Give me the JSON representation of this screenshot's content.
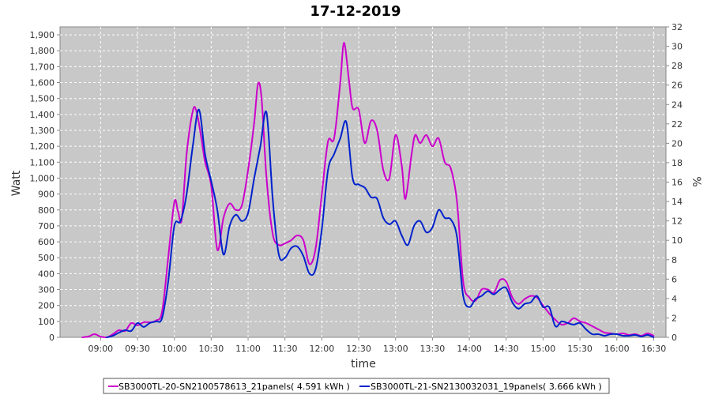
{
  "chart_data": {
    "type": "line",
    "title": "17-12-2019",
    "xlabel": "time",
    "ylabel": "Watt",
    "y2label": "%",
    "ylim": [
      0,
      1950
    ],
    "y2lim": [
      0,
      32
    ],
    "x_ticks": [
      "09:00",
      "09:30",
      "10:00",
      "10:30",
      "11:00",
      "11:30",
      "12:00",
      "12:30",
      "13:00",
      "13:30",
      "14:00",
      "14:30",
      "15:00",
      "15:30",
      "16:00",
      "16:30"
    ],
    "y_ticks": [
      "0",
      "100",
      "200",
      "300",
      "400",
      "500",
      "600",
      "700",
      "800",
      "900",
      "1,000",
      "1,100",
      "1,200",
      "1,300",
      "1,400",
      "1,500",
      "1,600",
      "1,700",
      "1,800",
      "1,900"
    ],
    "y2_ticks": [
      "0",
      "2",
      "4",
      "6",
      "8",
      "10",
      "12",
      "14",
      "16",
      "18",
      "20",
      "22",
      "24",
      "26",
      "28",
      "30",
      "32"
    ],
    "grid": true,
    "legend_position": "bottom",
    "series": [
      {
        "name": "SB3000TL-20-SN2100578613_21panels( 4.591 kWh )",
        "color": "#cc00cc",
        "points": [
          [
            "08:45",
            0
          ],
          [
            "08:50",
            5
          ],
          [
            "08:55",
            20
          ],
          [
            "09:00",
            5
          ],
          [
            "09:05",
            0
          ],
          [
            "09:10",
            20
          ],
          [
            "09:15",
            45
          ],
          [
            "09:20",
            40
          ],
          [
            "09:25",
            90
          ],
          [
            "09:30",
            75
          ],
          [
            "09:35",
            95
          ],
          [
            "09:40",
            95
          ],
          [
            "09:45",
            105
          ],
          [
            "09:50",
            160
          ],
          [
            "09:55",
            500
          ],
          [
            "10:00",
            850
          ],
          [
            "10:03",
            790
          ],
          [
            "10:06",
            740
          ],
          [
            "10:10",
            1150
          ],
          [
            "10:15",
            1420
          ],
          [
            "10:18",
            1420
          ],
          [
            "10:22",
            1250
          ],
          [
            "10:25",
            1100
          ],
          [
            "10:30",
            950
          ],
          [
            "10:35",
            550
          ],
          [
            "10:40",
            750
          ],
          [
            "10:45",
            840
          ],
          [
            "10:50",
            800
          ],
          [
            "10:55",
            830
          ],
          [
            "11:00",
            1050
          ],
          [
            "11:05",
            1350
          ],
          [
            "11:08",
            1590
          ],
          [
            "11:11",
            1500
          ],
          [
            "11:15",
            1000
          ],
          [
            "11:20",
            650
          ],
          [
            "11:25",
            580
          ],
          [
            "11:30",
            590
          ],
          [
            "11:35",
            610
          ],
          [
            "11:40",
            640
          ],
          [
            "11:45",
            610
          ],
          [
            "11:50",
            460
          ],
          [
            "11:55",
            560
          ],
          [
            "12:00",
            900
          ],
          [
            "12:05",
            1230
          ],
          [
            "12:10",
            1250
          ],
          [
            "12:15",
            1600
          ],
          [
            "12:18",
            1850
          ],
          [
            "12:22",
            1620
          ],
          [
            "12:25",
            1440
          ],
          [
            "12:30",
            1430
          ],
          [
            "12:35",
            1220
          ],
          [
            "12:40",
            1360
          ],
          [
            "12:45",
            1300
          ],
          [
            "12:50",
            1050
          ],
          [
            "12:55",
            1000
          ],
          [
            "13:00",
            1270
          ],
          [
            "13:05",
            1080
          ],
          [
            "13:08",
            870
          ],
          [
            "13:13",
            1150
          ],
          [
            "13:16",
            1270
          ],
          [
            "13:20",
            1220
          ],
          [
            "13:25",
            1270
          ],
          [
            "13:30",
            1200
          ],
          [
            "13:35",
            1250
          ],
          [
            "13:40",
            1100
          ],
          [
            "13:45",
            1060
          ],
          [
            "13:50",
            850
          ],
          [
            "13:55",
            350
          ],
          [
            "14:00",
            250
          ],
          [
            "14:05",
            230
          ],
          [
            "14:10",
            300
          ],
          [
            "14:15",
            300
          ],
          [
            "14:20",
            280
          ],
          [
            "14:25",
            360
          ],
          [
            "14:30",
            350
          ],
          [
            "14:35",
            250
          ],
          [
            "14:40",
            210
          ],
          [
            "14:45",
            240
          ],
          [
            "14:50",
            260
          ],
          [
            "14:55",
            250
          ],
          [
            "15:00",
            200
          ],
          [
            "15:05",
            150
          ],
          [
            "15:10",
            110
          ],
          [
            "15:15",
            80
          ],
          [
            "15:20",
            90
          ],
          [
            "15:25",
            120
          ],
          [
            "15:30",
            100
          ],
          [
            "15:35",
            90
          ],
          [
            "15:40",
            70
          ],
          [
            "15:45",
            50
          ],
          [
            "15:50",
            30
          ],
          [
            "15:55",
            25
          ],
          [
            "16:00",
            20
          ],
          [
            "16:05",
            25
          ],
          [
            "16:10",
            15
          ],
          [
            "16:15",
            20
          ],
          [
            "16:20",
            10
          ],
          [
            "16:25",
            25
          ],
          [
            "16:30",
            10
          ]
        ]
      },
      {
        "name": "SB3000TL-21-SN2130032031_19panels( 3.666 kWh )",
        "color": "#0022cc",
        "points": [
          [
            "09:05",
            0
          ],
          [
            "09:10",
            10
          ],
          [
            "09:15",
            30
          ],
          [
            "09:20",
            45
          ],
          [
            "09:25",
            40
          ],
          [
            "09:30",
            90
          ],
          [
            "09:35",
            65
          ],
          [
            "09:40",
            90
          ],
          [
            "09:45",
            100
          ],
          [
            "09:50",
            120
          ],
          [
            "09:55",
            350
          ],
          [
            "10:00",
            700
          ],
          [
            "10:05",
            730
          ],
          [
            "10:10",
            900
          ],
          [
            "10:15",
            1200
          ],
          [
            "10:20",
            1430
          ],
          [
            "10:25",
            1150
          ],
          [
            "10:30",
            980
          ],
          [
            "10:35",
            800
          ],
          [
            "10:40",
            520
          ],
          [
            "10:45",
            700
          ],
          [
            "10:50",
            770
          ],
          [
            "10:55",
            730
          ],
          [
            "11:00",
            780
          ],
          [
            "11:05",
            1000
          ],
          [
            "11:10",
            1200
          ],
          [
            "11:15",
            1410
          ],
          [
            "11:20",
            870
          ],
          [
            "11:25",
            520
          ],
          [
            "11:30",
            500
          ],
          [
            "11:35",
            560
          ],
          [
            "11:40",
            570
          ],
          [
            "11:45",
            510
          ],
          [
            "11:50",
            400
          ],
          [
            "11:55",
            430
          ],
          [
            "12:00",
            680
          ],
          [
            "12:05",
            1050
          ],
          [
            "12:10",
            1150
          ],
          [
            "12:15",
            1250
          ],
          [
            "12:20",
            1350
          ],
          [
            "12:25",
            1000
          ],
          [
            "12:30",
            960
          ],
          [
            "12:35",
            940
          ],
          [
            "12:40",
            880
          ],
          [
            "12:45",
            870
          ],
          [
            "12:50",
            750
          ],
          [
            "12:55",
            710
          ],
          [
            "13:00",
            730
          ],
          [
            "13:05",
            640
          ],
          [
            "13:10",
            580
          ],
          [
            "13:15",
            700
          ],
          [
            "13:20",
            730
          ],
          [
            "13:25",
            660
          ],
          [
            "13:30",
            690
          ],
          [
            "13:35",
            800
          ],
          [
            "13:40",
            750
          ],
          [
            "13:45",
            740
          ],
          [
            "13:50",
            630
          ],
          [
            "13:55",
            260
          ],
          [
            "14:00",
            190
          ],
          [
            "14:05",
            240
          ],
          [
            "14:10",
            260
          ],
          [
            "14:15",
            290
          ],
          [
            "14:20",
            270
          ],
          [
            "14:25",
            300
          ],
          [
            "14:30",
            310
          ],
          [
            "14:35",
            220
          ],
          [
            "14:40",
            180
          ],
          [
            "14:45",
            210
          ],
          [
            "14:50",
            220
          ],
          [
            "14:55",
            260
          ],
          [
            "15:00",
            190
          ],
          [
            "15:05",
            190
          ],
          [
            "15:10",
            70
          ],
          [
            "15:15",
            100
          ],
          [
            "15:20",
            90
          ],
          [
            "15:25",
            80
          ],
          [
            "15:30",
            90
          ],
          [
            "15:35",
            50
          ],
          [
            "15:40",
            20
          ],
          [
            "15:45",
            20
          ],
          [
            "15:50",
            10
          ],
          [
            "15:55",
            20
          ],
          [
            "16:00",
            20
          ],
          [
            "16:05",
            10
          ],
          [
            "16:10",
            10
          ],
          [
            "16:15",
            15
          ],
          [
            "16:20",
            5
          ],
          [
            "16:25",
            15
          ],
          [
            "16:30",
            0
          ]
        ]
      }
    ]
  }
}
